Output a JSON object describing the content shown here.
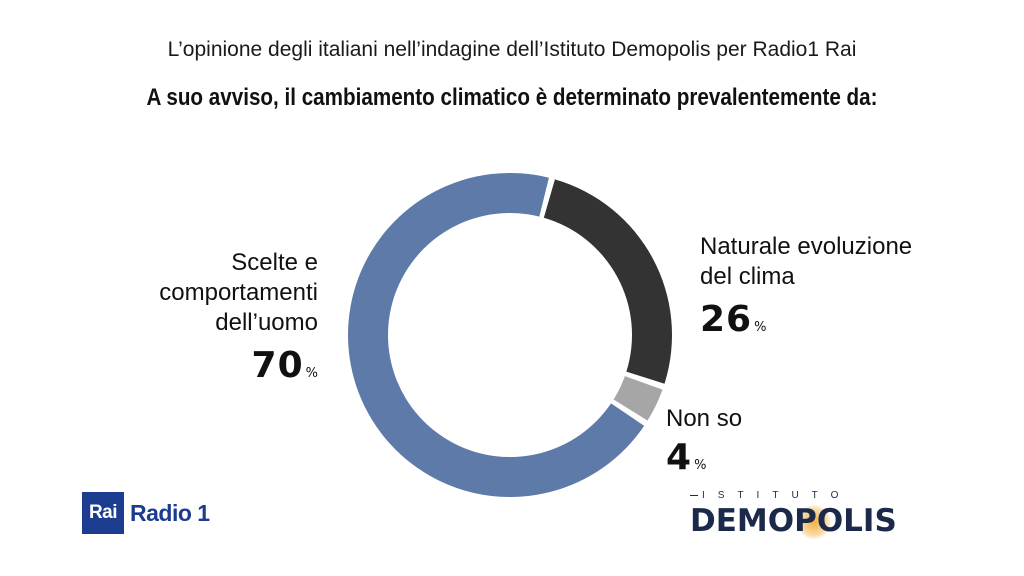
{
  "header": {
    "subtitle": "L’opinione degli italiani nell’indagine dell’Istituto Demopolis per Radio1 Rai",
    "question": "A suo avviso, il cambiamento climatico è determinato prevalentemente da:"
  },
  "chart_data": {
    "type": "pie",
    "variant": "donut",
    "title": "A suo avviso, il cambiamento climatico è determinato prevalentemente da:",
    "slices": [
      {
        "label": "Scelte e comportamenti dell’uomo",
        "value": 70,
        "display": "70",
        "color": "#5d7aa8"
      },
      {
        "label": "Naturale evoluzione del clima",
        "value": 26,
        "display": "26",
        "color": "#333333"
      },
      {
        "label": "Non so",
        "value": 4,
        "display": "4",
        "color": "#a6a6a6"
      }
    ],
    "unit": "%"
  },
  "labels": {
    "left_lines": [
      "Scelte e",
      "comportamenti",
      "dell’uomo"
    ],
    "right_lines": [
      "Naturale evoluzione",
      "del clima"
    ],
    "small_lines": [
      "Non so"
    ]
  },
  "logos": {
    "rai": "Rai",
    "radio": "Radio 1",
    "demopolis_small": "ISTITUTO",
    "demopolis_big": "DEMOPOLIS"
  }
}
